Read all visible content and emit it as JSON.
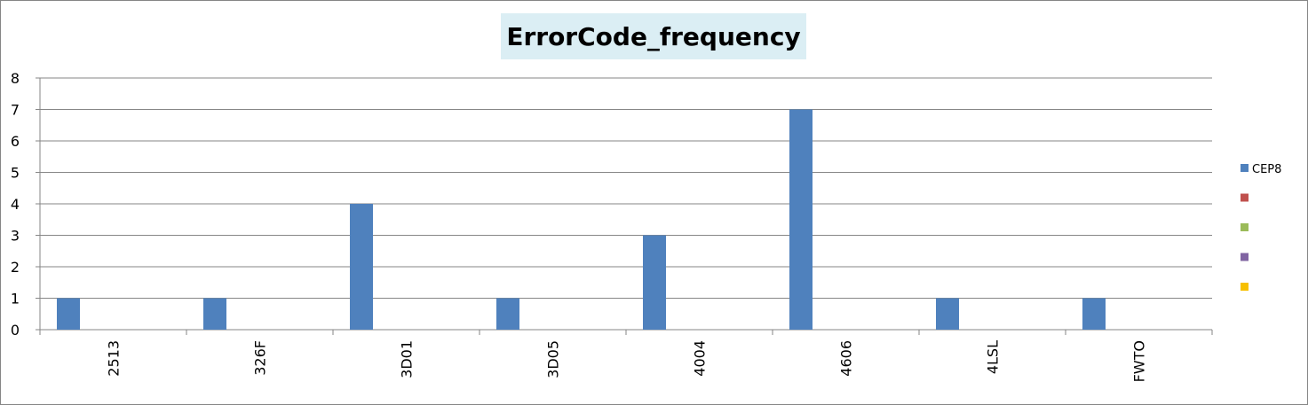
{
  "chart_data": {
    "type": "bar",
    "title": "ErrorCode_frequency",
    "xlabel": "",
    "ylabel": "",
    "categories": [
      "2513",
      "326F",
      "3D01",
      "3D05",
      "4004",
      "4606",
      "4LSL",
      "FWTO"
    ],
    "series": [
      {
        "name": "CEP8",
        "color": "#4f81bd",
        "values": [
          1,
          1,
          4,
          1,
          3,
          7,
          1,
          1
        ]
      },
      {
        "name": "",
        "color": "#c0504d",
        "values": [
          0,
          0,
          0,
          0,
          0,
          0,
          0,
          0
        ]
      },
      {
        "name": "",
        "color": "#9bbb59",
        "values": [
          0,
          0,
          0,
          0,
          0,
          0,
          0,
          0
        ]
      },
      {
        "name": "",
        "color": "#8064a2",
        "values": [
          0,
          0,
          0,
          0,
          0,
          0,
          0,
          0
        ]
      },
      {
        "name": "",
        "color": "#f7c000",
        "values": [
          0,
          0,
          0,
          0,
          0,
          0,
          0,
          0
        ]
      }
    ],
    "ylim": [
      0,
      8
    ],
    "yticks": [
      "0",
      "1",
      "2",
      "3",
      "4",
      "5",
      "6",
      "7",
      "8"
    ],
    "grid": true,
    "legend_position": "right"
  }
}
